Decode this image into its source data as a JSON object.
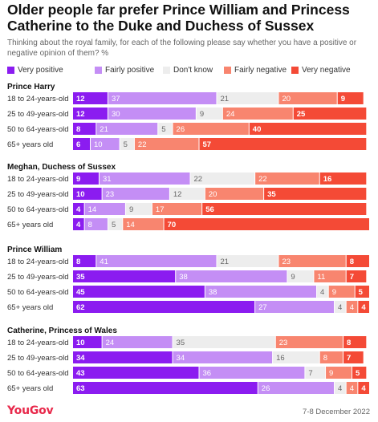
{
  "title": "Older people far prefer Prince William and Princess Catherine to the Duke and Duchess of Sussex",
  "subtitle": "Thinking about the royal family, for each of the following please say whether you have a positive or negative opinion of them? %",
  "footer": {
    "brand": "YouGov",
    "date": "7-8 December 2022"
  },
  "colors": {
    "very_positive": "#8B1CF0",
    "fairly_positive": "#C48EF5",
    "dont_know": "#EDEDED",
    "fairly_negative": "#F8856F",
    "very_negative": "#F44A36"
  },
  "chart_data": {
    "type": "bar",
    "orientation": "horizontal",
    "stacked": true,
    "xlim": [
      0,
      100
    ],
    "series": [
      {
        "name": "Very positive",
        "color_key": "very_positive"
      },
      {
        "name": "Fairly positive",
        "color_key": "fairly_positive"
      },
      {
        "name": "Don't know",
        "color_key": "dont_know"
      },
      {
        "name": "Fairly negative",
        "color_key": "fairly_negative"
      },
      {
        "name": "Very negative",
        "color_key": "very_negative"
      }
    ],
    "groups": [
      {
        "name": "Prince Harry",
        "rows": [
          {
            "label": "18 to 24-years-old",
            "values": [
              12,
              37,
              21,
              20,
              9
            ]
          },
          {
            "label": "25 to 49-years-old",
            "values": [
              12,
              30,
              9,
              24,
              25
            ]
          },
          {
            "label": "50 to 64-years-old",
            "values": [
              8,
              21,
              5,
              26,
              40
            ]
          },
          {
            "label": "65+ years old",
            "values": [
              6,
              10,
              5,
              22,
              57
            ]
          }
        ]
      },
      {
        "name": "Meghan, Duchess of Sussex",
        "rows": [
          {
            "label": "18 to 24-years-old",
            "values": [
              9,
              31,
              22,
              22,
              16
            ]
          },
          {
            "label": "25 to 49-years-old",
            "values": [
              10,
              23,
              12,
              20,
              35
            ]
          },
          {
            "label": "50 to 64-years-old",
            "values": [
              4,
              14,
              9,
              17,
              56
            ]
          },
          {
            "label": "65+ years old",
            "values": [
              4,
              8,
              5,
              14,
              70
            ]
          }
        ]
      },
      {
        "name": "Prince William",
        "rows": [
          {
            "label": "18 to 24-years-old",
            "values": [
              8,
              41,
              21,
              23,
              8
            ]
          },
          {
            "label": "25 to 49-years-old",
            "values": [
              35,
              38,
              9,
              11,
              7
            ]
          },
          {
            "label": "50 to 64-years-old",
            "values": [
              45,
              38,
              4,
              9,
              5
            ]
          },
          {
            "label": "65+ years old",
            "values": [
              62,
              27,
              4,
              4,
              4
            ]
          }
        ]
      },
      {
        "name": "Catherine, Princess of Wales",
        "rows": [
          {
            "label": "18 to 24-years-old",
            "values": [
              10,
              24,
              35,
              23,
              8
            ]
          },
          {
            "label": "25 to 49-years-old",
            "values": [
              34,
              34,
              16,
              8,
              7
            ]
          },
          {
            "label": "50 to 64-years-old",
            "values": [
              43,
              36,
              7,
              9,
              5
            ]
          },
          {
            "label": "65+ years old",
            "values": [
              63,
              26,
              4,
              4,
              4
            ]
          }
        ]
      }
    ]
  }
}
